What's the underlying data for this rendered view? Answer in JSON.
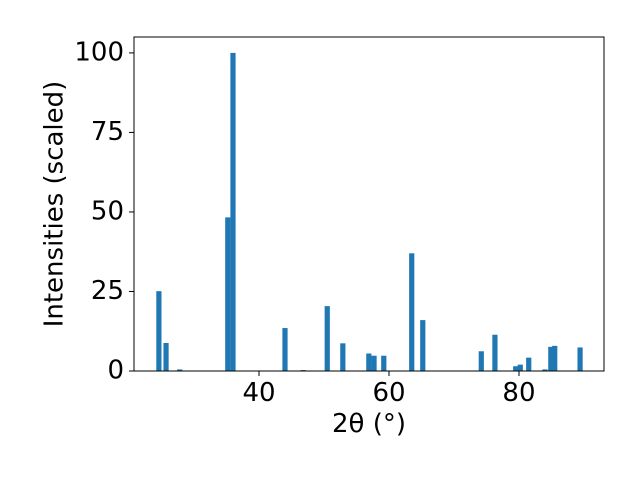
{
  "chart_data": {
    "type": "bar",
    "xlabel": "2θ (°)",
    "ylabel": "Intensities (scaled)",
    "x": [
      24.6,
      25.7,
      27.8,
      35.2,
      36.0,
      44.0,
      46.8,
      50.5,
      52.9,
      56.9,
      57.7,
      59.2,
      63.5,
      65.2,
      74.2,
      76.3,
      79.5,
      80.2,
      81.5,
      84.0,
      84.9,
      85.5,
      89.4
    ],
    "values": [
      25.1,
      8.8,
      0.5,
      48.3,
      100,
      13.5,
      0.3,
      20.4,
      8.7,
      5.5,
      4.8,
      4.8,
      37.0,
      16.0,
      6.2,
      11.4,
      1.5,
      2.0,
      4.2,
      0.5,
      7.6,
      7.9,
      7.4
    ],
    "color": "#1f77b4",
    "xlim": [
      20.77,
      93.08
    ],
    "ylim": [
      0,
      105
    ],
    "xticks": [
      40,
      60,
      80
    ],
    "yticks": [
      0,
      25,
      50,
      75,
      100
    ]
  }
}
